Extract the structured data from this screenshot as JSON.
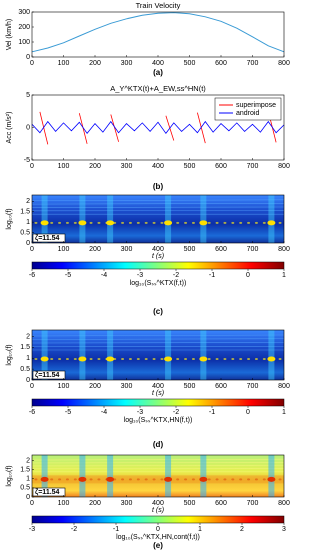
{
  "chart_data": [
    {
      "type": "line",
      "title": "Train Velocity",
      "ylabel": "Vel (km/h)",
      "panel_label": "(a)",
      "x": [
        0,
        50,
        100,
        150,
        200,
        250,
        300,
        350,
        400,
        450,
        500,
        550,
        600,
        650,
        700,
        750,
        800
      ],
      "series": [
        {
          "color": "#3a9bd5",
          "values": [
            35,
            60,
            95,
            140,
            185,
            225,
            255,
            278,
            292,
            296,
            288,
            268,
            238,
            192,
            135,
            75,
            35
          ]
        }
      ],
      "xlim": [
        0,
        800
      ],
      "xticks": [
        0,
        100,
        200,
        300,
        400,
        500,
        600,
        700,
        800
      ],
      "ylim": [
        0,
        300
      ],
      "yticks": [
        0,
        100,
        200,
        300
      ]
    },
    {
      "type": "line",
      "title": "A_Y^KTX(t)+A_EW,ss^HN(t)",
      "ylabel": "Acc (m/s²)",
      "panel_label": "(b)",
      "legend": "upper right",
      "x": [
        0,
        25,
        50,
        75,
        100,
        125,
        150,
        175,
        200,
        225,
        250,
        275,
        300,
        325,
        350,
        375,
        400,
        425,
        450,
        475,
        500,
        525,
        550,
        575,
        600,
        625,
        650,
        675,
        700,
        725,
        750,
        775,
        800
      ],
      "series": [
        {
          "name": "superimpose",
          "color": "#ff0000",
          "values": [
            null,
            2.4,
            -2.6,
            null,
            null,
            null,
            2.2,
            -2.5,
            null,
            null,
            2.0,
            -2.2,
            null,
            null,
            null,
            null,
            null,
            1.8,
            -2.0,
            null,
            null,
            2.3,
            -2.4,
            null,
            null,
            null,
            null,
            null,
            null,
            null,
            2.5,
            -2.3,
            null
          ]
        },
        {
          "name": "android",
          "color": "#0000ff",
          "values": [
            0.5,
            -0.8,
            0.9,
            -0.6,
            0.7,
            -0.5,
            0.8,
            -0.9,
            0.6,
            -0.7,
            0.9,
            -0.8,
            0.6,
            -0.5,
            0.7,
            -0.6,
            0.8,
            -0.9,
            0.7,
            -0.6,
            0.5,
            -0.8,
            0.9,
            -0.7,
            0.6,
            -0.5,
            0.7,
            -0.6,
            0.5,
            -0.7,
            0.9,
            -0.8,
            0.4
          ]
        }
      ],
      "xlim": [
        0,
        800
      ],
      "xticks": [
        0,
        100,
        200,
        300,
        400,
        500,
        600,
        700,
        800
      ],
      "ylim": [
        -5,
        5
      ],
      "yticks": [
        -5,
        0,
        5
      ]
    },
    {
      "type": "heatmap",
      "palette": "blue",
      "ylabel": "log₁₀(f)",
      "xlabel": "t (s)",
      "annotation": "ζ=11.54",
      "panel_label": "(c)",
      "xlim": [
        0,
        800
      ],
      "xticks": [
        0,
        100,
        200,
        300,
        400,
        500,
        600,
        700,
        800
      ],
      "ylim": [
        0,
        2.3
      ],
      "yticks": [
        0,
        0.5,
        1,
        1.5,
        2
      ],
      "colorbar": {
        "label": "log₁₀(Sₛₛ^KTX(f,t))",
        "lim": [
          -6,
          1
        ],
        "ticks": [
          -6,
          -5,
          -4,
          -3,
          -2,
          -1,
          0,
          1
        ]
      }
    },
    {
      "type": "heatmap",
      "palette": "blue",
      "ylabel": "log₁₀(f)",
      "xlabel": "t (s)",
      "annotation": "ζ=11.54",
      "panel_label": "(d)",
      "xlim": [
        0,
        800
      ],
      "xticks": [
        0,
        100,
        200,
        300,
        400,
        500,
        600,
        700,
        800
      ],
      "ylim": [
        0,
        2.3
      ],
      "yticks": [
        0,
        0.5,
        1,
        1.5,
        2
      ],
      "colorbar": {
        "label": "log₁₀(Sₛₛ^KTX,HN(f,t))",
        "lim": [
          -6,
          1
        ],
        "ticks": [
          -6,
          -5,
          -4,
          -3,
          -2,
          -1,
          0,
          1
        ]
      }
    },
    {
      "type": "heatmap",
      "palette": "yellow",
      "ylabel": "log₁₀(f)",
      "xlabel": "t (s)",
      "annotation": "ζ=11.54",
      "panel_label": "(e)",
      "xlim": [
        0,
        800
      ],
      "xticks": [
        0,
        100,
        200,
        300,
        400,
        500,
        600,
        700,
        800
      ],
      "ylim": [
        0,
        2.3
      ],
      "yticks": [
        0,
        0.5,
        1,
        1.5,
        2
      ],
      "colorbar": {
        "label": "log₁₀(Sₛₛ^KTX,HN,cont(f,t))",
        "lim": [
          -3,
          3
        ],
        "ticks": [
          -3,
          -2,
          -1,
          0,
          1,
          2,
          3
        ]
      }
    }
  ]
}
